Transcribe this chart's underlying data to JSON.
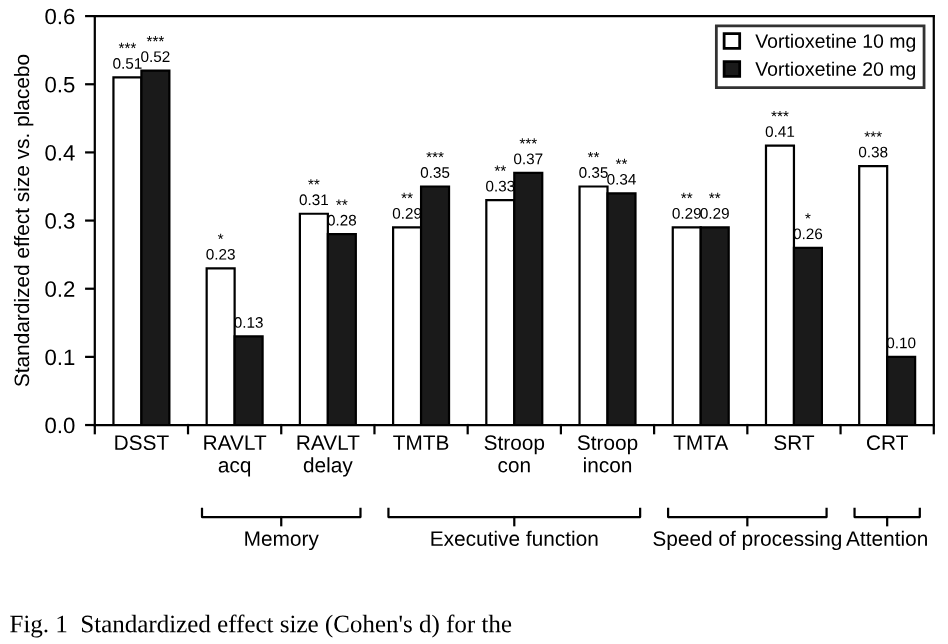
{
  "chart_data": {
    "type": "bar",
    "categories": [
      "DSST",
      "RAVLT\nacq",
      "RAVLT\ndelay",
      "TMTB",
      "Stroop\ncon",
      "Stroop\nincon",
      "TMTA",
      "SRT",
      "CRT"
    ],
    "ylabel": "Standardized effect size vs. placebo",
    "series": [
      {
        "name": "Vortioxetine 10 mg",
        "color": "#ffffff",
        "values": [
          0.51,
          0.23,
          0.31,
          0.29,
          0.33,
          0.35,
          0.29,
          0.41,
          0.38
        ],
        "value_labels": [
          "***\n0.51",
          "*\n0.23",
          "**\n0.31",
          "**\n0.29",
          "**\n0.33",
          "**\n0.35",
          "**\n0.29",
          "***\n0.41",
          "***\n0.38"
        ]
      },
      {
        "name": "Vortioxetine 20 mg",
        "color": "#1a1a1a",
        "values": [
          0.52,
          0.13,
          0.28,
          0.35,
          0.37,
          0.34,
          0.29,
          0.26,
          0.1
        ],
        "value_labels": [
          "***\n0.52",
          "0.13",
          "**\n0.28",
          "***\n0.35",
          "***\n0.37",
          "**\n0.34",
          "**\n0.29",
          "*\n0.26",
          "0.10"
        ]
      }
    ],
    "ylim": [
      0,
      0.6
    ],
    "yticks": [
      {
        "value": 0,
        "label": "0.0"
      },
      0.1,
      0.2,
      0.3,
      0.4,
      0.5,
      0.6
    ],
    "grid": false,
    "legend": "top right",
    "annotations": [
      "Memory",
      "Executive function",
      "Speed of processing",
      "Attention",
      "Fig. 1  Standardized effect size (Cohen's d) for the"
    ]
  }
}
